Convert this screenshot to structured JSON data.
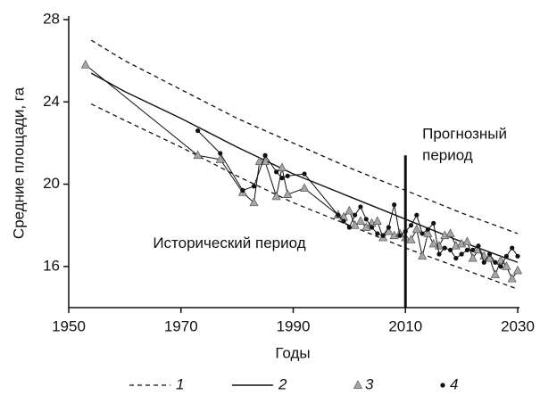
{
  "chart_data": {
    "type": "line",
    "y_label": "Средние площади, га",
    "x_label": "Годы",
    "xlim": [
      1950,
      2030
    ],
    "ylim": [
      14,
      28
    ],
    "xticks": [
      1950,
      1970,
      1990,
      2010,
      2030
    ],
    "yticks": [
      16,
      20,
      24,
      28
    ],
    "divider": {
      "x": 2010,
      "top": 21.4
    },
    "annotations": [
      {
        "lines": [
          "Прогнозный",
          "период"
        ],
        "x": 2013,
        "y": 22.4
      },
      {
        "lines": [
          "Исторический период"
        ],
        "x": 1965,
        "y": 17.1
      }
    ],
    "series": [
      {
        "name": "1",
        "style": "dashed",
        "color": "#111111",
        "x": [
          1954,
          1960,
          1970,
          1980,
          1990,
          2000,
          2010,
          2020,
          2030
        ],
        "upper": [
          27.0,
          26.0,
          24.6,
          23.2,
          22.0,
          20.8,
          19.7,
          18.6,
          17.6
        ],
        "lower": [
          23.9,
          23.1,
          21.8,
          20.4,
          19.1,
          18.0,
          16.9,
          15.9,
          14.9
        ]
      },
      {
        "name": "2",
        "style": "solid",
        "color": "#111111",
        "x": [
          1954,
          1960,
          1970,
          1980,
          1990,
          2000,
          2010,
          2020,
          2030
        ],
        "values": [
          25.4,
          24.5,
          23.2,
          21.8,
          20.5,
          19.4,
          18.3,
          17.2,
          16.2
        ]
      },
      {
        "name": "3",
        "style": "triangle",
        "color": "#a6a6a6",
        "x": [
          1953,
          1973,
          1977,
          1981,
          1983,
          1984,
          1985,
          1987,
          1988,
          1989,
          1992,
          1998,
          1999,
          2000,
          2001,
          2002,
          2003,
          2004,
          2005,
          2006,
          2007,
          2008,
          2009,
          2010,
          2011,
          2012,
          2013,
          2014,
          2015,
          2016,
          2017,
          2018,
          2019,
          2020,
          2021,
          2022,
          2023,
          2024,
          2025,
          2026,
          2027,
          2028,
          2029,
          2030
        ],
        "values": [
          25.8,
          21.4,
          21.2,
          19.6,
          19.1,
          21.1,
          21.1,
          19.4,
          20.8,
          19.5,
          19.8,
          18.5,
          18.4,
          18.7,
          18.0,
          18.2,
          17.9,
          18.1,
          18.2,
          17.4,
          17.7,
          17.5,
          17.6,
          17.4,
          17.3,
          17.8,
          16.5,
          17.6,
          17.1,
          17.0,
          17.5,
          17.6,
          17.0,
          17.1,
          17.2,
          16.4,
          16.8,
          16.5,
          16.4,
          15.6,
          16.3,
          16.0,
          15.4,
          15.8
        ]
      },
      {
        "name": "4",
        "style": "dot",
        "color": "#111111",
        "x": [
          1973,
          1977,
          1981,
          1983,
          1985,
          1987,
          1988,
          1989,
          1992,
          1998,
          1999,
          2000,
          2001,
          2002,
          2003,
          2004,
          2005,
          2006,
          2007,
          2008,
          2009,
          2010,
          2011,
          2012,
          2013,
          2014,
          2015,
          2016,
          2017,
          2018,
          2019,
          2020,
          2021,
          2022,
          2023,
          2024,
          2025,
          2026,
          2027,
          2028,
          2029,
          2030
        ],
        "values": [
          22.6,
          21.5,
          19.7,
          19.9,
          21.4,
          20.6,
          20.3,
          20.4,
          20.5,
          18.5,
          18.2,
          17.9,
          18.5,
          18.9,
          18.3,
          17.9,
          17.6,
          17.5,
          17.9,
          19.0,
          17.5,
          17.7,
          18.0,
          18.5,
          17.6,
          17.8,
          18.1,
          16.6,
          16.9,
          16.8,
          16.4,
          16.6,
          16.8,
          16.8,
          17.0,
          16.2,
          16.6,
          16.2,
          16.0,
          16.5,
          16.9,
          16.5
        ]
      }
    ]
  }
}
